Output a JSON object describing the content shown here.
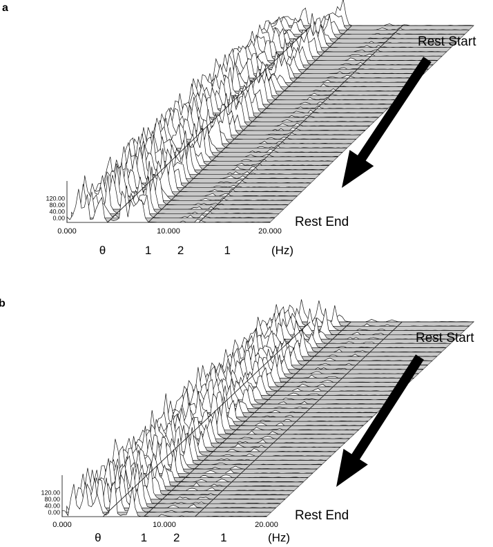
{
  "chart_data": [
    {
      "type": "waterfall-spectrum",
      "panel": "a",
      "z_ticks": [
        "120.00",
        "80.00",
        "40.00",
        "0.00"
      ],
      "x_ticks": [
        "0.000",
        "10.000",
        "20.000"
      ],
      "x_range": [
        0,
        20
      ],
      "x_unit": "(Hz)",
      "band_labels": [
        "θ",
        "1",
        "2",
        "1"
      ],
      "band_label_positions_hz": [
        3.5,
        8.0,
        11.2,
        15.8
      ],
      "band_boundaries_hz": [
        0,
        4,
        8,
        13,
        20
      ],
      "rest_start_label": "Rest Start",
      "rest_end_label": "Rest End",
      "major_peak_hz": [
        1.0,
        1.8,
        3.2,
        5.5,
        6.5,
        7.2
      ],
      "minor_peak_hz": [
        11.5,
        13.0
      ]
    },
    {
      "type": "waterfall-spectrum",
      "panel": "b",
      "z_ticks": [
        "120.00",
        "80.00",
        "40.00",
        "0.00"
      ],
      "x_ticks": [
        "0.000",
        "10.000",
        "20.000"
      ],
      "x_range": [
        0,
        20
      ],
      "x_unit": "(Hz)",
      "band_labels": [
        "θ",
        "1",
        "2",
        "1"
      ],
      "band_label_positions_hz": [
        3.5,
        8.0,
        11.2,
        15.8
      ],
      "band_boundaries_hz": [
        0,
        4,
        8,
        13,
        20
      ],
      "rest_start_label": "Rest Start",
      "rest_end_label": "Rest End",
      "major_peak_hz": [
        1.2,
        2.2,
        3.3,
        5.0,
        6.8
      ],
      "minor_peak_hz": [
        10.0,
        12.0
      ]
    }
  ]
}
